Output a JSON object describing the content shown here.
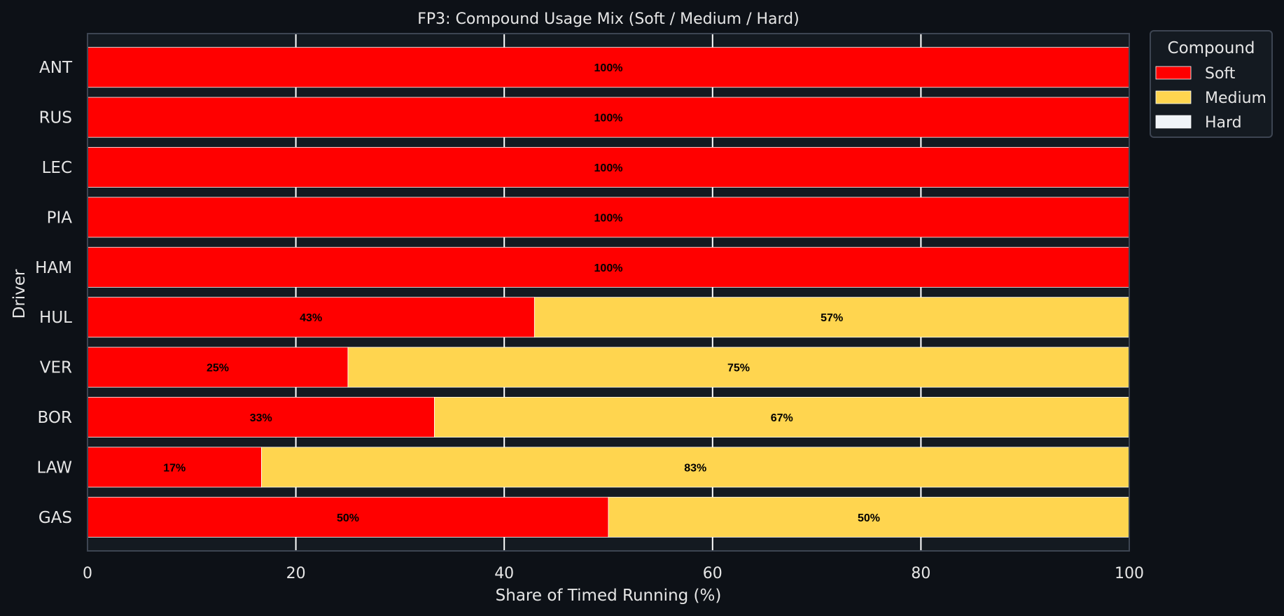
{
  "chart_data": {
    "type": "bar",
    "orientation": "horizontal",
    "stacked": true,
    "title": "FP3: Compound Usage Mix (Soft / Medium / Hard)",
    "xlabel": "Share of Timed Running (%)",
    "ylabel": "Driver",
    "xlim": [
      0,
      100
    ],
    "xticks": [
      0,
      20,
      40,
      60,
      80,
      100
    ],
    "grid": true,
    "legend": {
      "title": "Compound",
      "placement": "outside-top-right"
    },
    "categories": [
      "ANT",
      "RUS",
      "LEC",
      "PIA",
      "HAM",
      "HUL",
      "VER",
      "BOR",
      "LAW",
      "GAS"
    ],
    "series": [
      {
        "name": "Soft",
        "color": "#ff0000",
        "values": [
          100,
          100,
          100,
          100,
          100,
          42.9,
          25,
          33.3,
          16.7,
          50
        ],
        "labels": [
          "100%",
          "100%",
          "100%",
          "100%",
          "100%",
          "43%",
          "25%",
          "33%",
          "17%",
          "50%"
        ]
      },
      {
        "name": "Medium",
        "color": "#ffd54f",
        "values": [
          0,
          0,
          0,
          0,
          0,
          57.1,
          75,
          66.7,
          83.3,
          50
        ],
        "labels": [
          "",
          "",
          "",
          "",
          "",
          "57%",
          "75%",
          "67%",
          "83%",
          "50%"
        ]
      },
      {
        "name": "Hard",
        "color": "#f0f4f8",
        "values": [
          0,
          0,
          0,
          0,
          0,
          0,
          0,
          0,
          0,
          0
        ],
        "labels": [
          "",
          "",
          "",
          "",
          "",
          "",
          "",
          "",
          "",
          ""
        ]
      }
    ]
  },
  "colors": {
    "background": "#0d1117",
    "plot_background": "#141a21",
    "grid": "#ffffff",
    "axis_frame": "#3d4552",
    "text": "#e6e6e6"
  }
}
